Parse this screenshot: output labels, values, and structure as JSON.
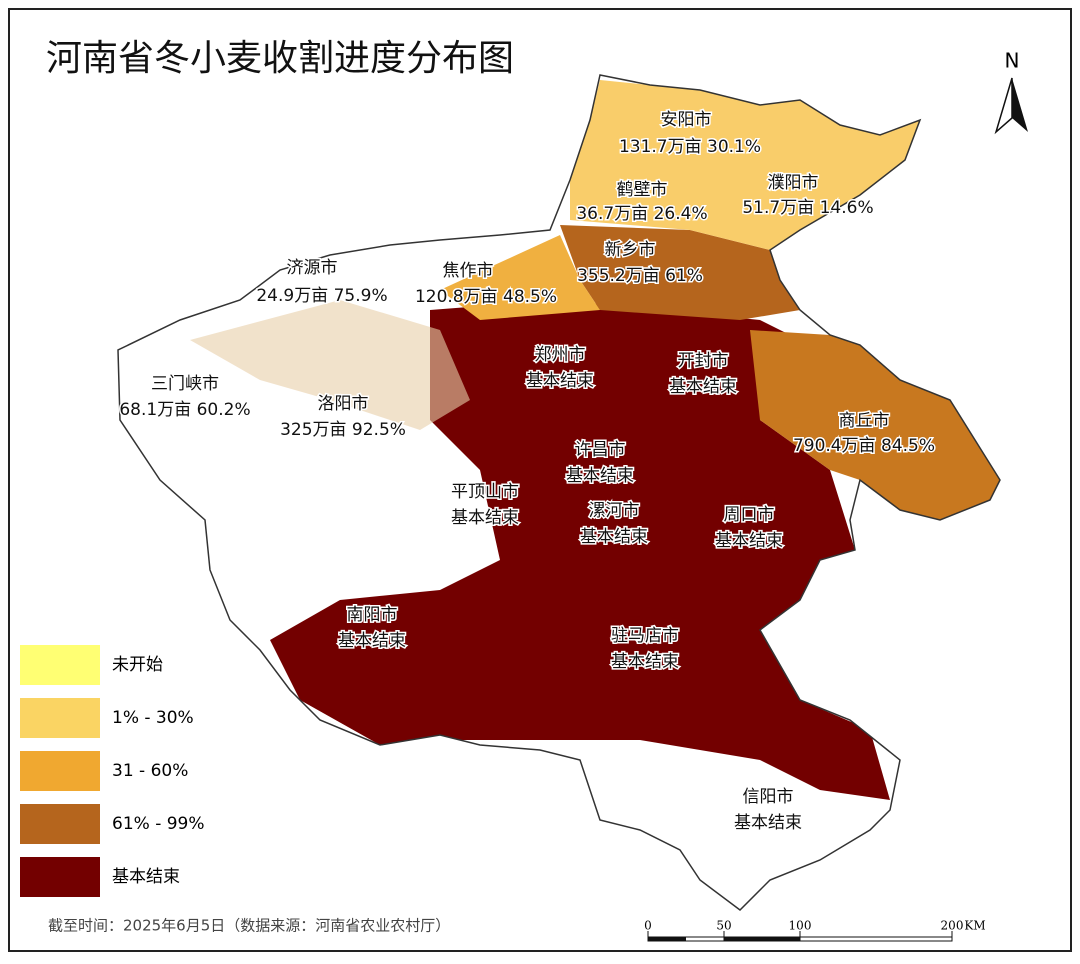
{
  "title": "河南省冬小麦收割进度分布图",
  "north_arrow": "N",
  "legend": [
    {
      "label": "未开始",
      "color": "#ffff73"
    },
    {
      "label": "1% - 30%",
      "color": "#fad463"
    },
    {
      "label": "31 - 60%",
      "color": "#f0a830"
    },
    {
      "label": "61% - 99%",
      "color": "#b5651d"
    },
    {
      "label": "基本结束",
      "color": "#730000"
    }
  ],
  "cities": [
    {
      "name": "安阳市",
      "detail": "131.7万亩 30.1%"
    },
    {
      "name": "鹤壁市",
      "detail": "36.7万亩 26.4%"
    },
    {
      "name": "濮阳市",
      "detail": "51.7万亩 14.6%"
    },
    {
      "name": "新乡市",
      "detail": "355.2万亩 61%"
    },
    {
      "name": "焦作市",
      "detail": "120.8万亩 48.5%"
    },
    {
      "name": "济源市",
      "detail": "24.9万亩 75.9%"
    },
    {
      "name": "郑州市",
      "detail": "基本结束"
    },
    {
      "name": "开封市",
      "detail": "基本结束"
    },
    {
      "name": "三门峡市",
      "detail": "68.1万亩 60.2%"
    },
    {
      "name": "洛阳市",
      "detail": "325万亩 92.5%"
    },
    {
      "name": "商丘市",
      "detail": "790.4万亩 84.5%"
    },
    {
      "name": "许昌市",
      "detail": "基本结束"
    },
    {
      "name": "平顶山市",
      "detail": "基本结束"
    },
    {
      "name": "漯河市",
      "detail": "基本结束"
    },
    {
      "name": "周口市",
      "detail": "基本结束"
    },
    {
      "name": "南阳市",
      "detail": "基本结束"
    },
    {
      "name": "驻马店市",
      "detail": "基本结束"
    },
    {
      "name": "信阳市",
      "detail": "基本结束"
    }
  ],
  "footer": "截至时间：2025年6月5日（数据来源：河南省农业农村厅）",
  "scale_bar": {
    "labels": [
      "0",
      "50",
      "100",
      "200",
      "KM"
    ]
  }
}
